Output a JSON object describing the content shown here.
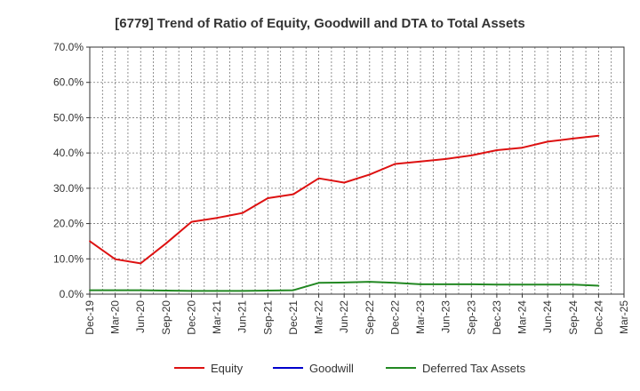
{
  "chart_data": {
    "type": "line",
    "title": "[6779]  Trend of Ratio of Equity, Goodwill and DTA to Total Assets",
    "xlabel": "",
    "ylabel": "",
    "ylim": [
      0,
      70
    ],
    "yticks": [
      "0.0%",
      "10.0%",
      "20.0%",
      "30.0%",
      "40.0%",
      "50.0%",
      "60.0%",
      "70.0%"
    ],
    "categories": [
      "Dec-19",
      "Mar-20",
      "Jun-20",
      "Sep-20",
      "Dec-20",
      "Mar-21",
      "Jun-21",
      "Sep-21",
      "Dec-21",
      "Mar-22",
      "Jun-22",
      "Sep-22",
      "Dec-22",
      "Mar-23",
      "Jun-23",
      "Sep-23",
      "Dec-23",
      "Mar-24",
      "Jun-24",
      "Sep-24",
      "Dec-24",
      "Mar-25"
    ],
    "grid": true,
    "legend_position": "bottom",
    "series": [
      {
        "name": "Equity",
        "color": "#dd1111",
        "values": [
          15.0,
          9.9,
          8.7,
          14.4,
          20.5,
          21.6,
          23.0,
          27.2,
          28.3,
          32.8,
          31.6,
          33.9,
          36.9,
          37.6,
          38.3,
          39.3,
          40.8,
          41.5,
          43.2,
          44.1,
          44.9,
          null
        ]
      },
      {
        "name": "Goodwill",
        "color": "#0000cc",
        "values": [
          null,
          null,
          null,
          null,
          null,
          null,
          null,
          null,
          null,
          null,
          null,
          null,
          null,
          null,
          null,
          null,
          null,
          null,
          null,
          null,
          null,
          null
        ]
      },
      {
        "name": "Deferred Tax Assets",
        "color": "#228822",
        "values": [
          1.1,
          1.1,
          1.1,
          1.0,
          0.9,
          0.9,
          0.9,
          1.0,
          1.1,
          3.2,
          3.3,
          3.5,
          3.2,
          2.8,
          2.8,
          2.8,
          2.7,
          2.7,
          2.7,
          2.7,
          2.4,
          null
        ]
      }
    ]
  }
}
